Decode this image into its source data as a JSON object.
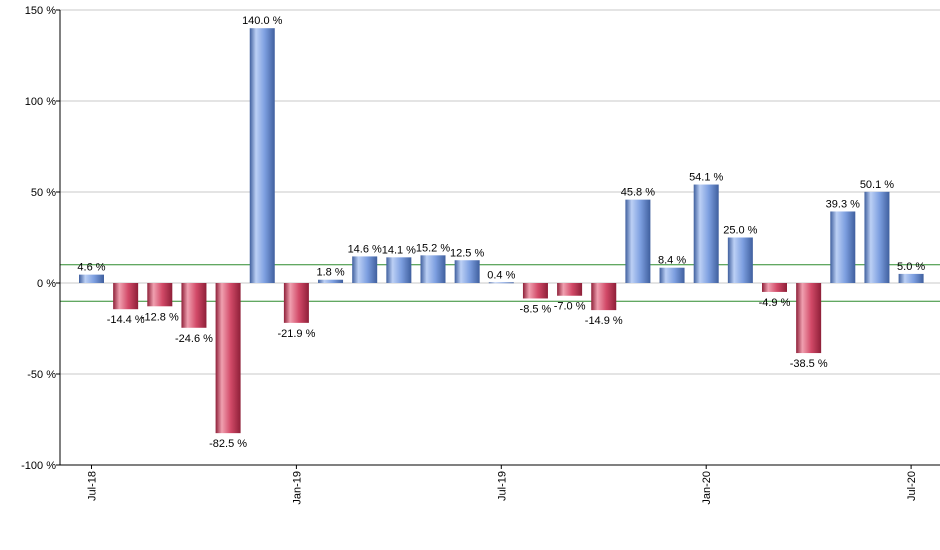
{
  "chart_data": {
    "type": "bar",
    "title": "",
    "xlabel": "",
    "ylabel": "",
    "ylim": [
      -100,
      150
    ],
    "yticks": [
      150,
      100,
      50,
      0,
      -50,
      -100
    ],
    "ytick_labels": [
      "150 %",
      "100 %",
      "50 %",
      "0 %",
      "-50 %",
      "-100 %"
    ],
    "grid": true,
    "reference_lines": [
      10,
      -10
    ],
    "values": [
      4.6,
      -14.4,
      -12.8,
      -24.6,
      -82.5,
      140.0,
      -21.9,
      1.8,
      14.6,
      14.1,
      15.2,
      12.5,
      0.4,
      -8.5,
      -7.0,
      -14.9,
      45.8,
      8.4,
      54.1,
      25.0,
      -4.9,
      -38.5,
      39.3,
      50.1,
      5.0
    ],
    "data_labels": [
      "4.6 %",
      "-14.4 %",
      "-12.8 %",
      "-24.6 %",
      "-82.5 %",
      "140.0 %",
      "-21.9 %",
      "1.8 %",
      "14.6 %",
      "14.1 %",
      "15.2 %",
      "12.5 %",
      "0.4 %",
      "-8.5 %",
      "-7.0 %",
      "-14.9 %",
      "45.8 %",
      "8.4 %",
      "54.1 %",
      "25.0 %",
      "-4.9 %",
      "-38.5 %",
      "39.3 %",
      "50.1 %",
      "5.0 %"
    ],
    "x_ticks": [
      {
        "index": 0,
        "label": "Jul-18"
      },
      {
        "index": 6,
        "label": "Jan-19"
      },
      {
        "index": 12,
        "label": "Jul-19"
      },
      {
        "index": 18,
        "label": "Jan-20"
      },
      {
        "index": 24,
        "label": "Jul-20"
      }
    ],
    "colors": {
      "positive": "#7d9fe0",
      "positive_light": "#bcd0f5",
      "positive_dark": "#3f5f9e",
      "negative": "#d24a68",
      "negative_light": "#f0a0b0",
      "negative_dark": "#8e1f38",
      "reference_line": "#2e8b2e",
      "grid": "#c8c8c8",
      "axis": "#000000"
    }
  }
}
